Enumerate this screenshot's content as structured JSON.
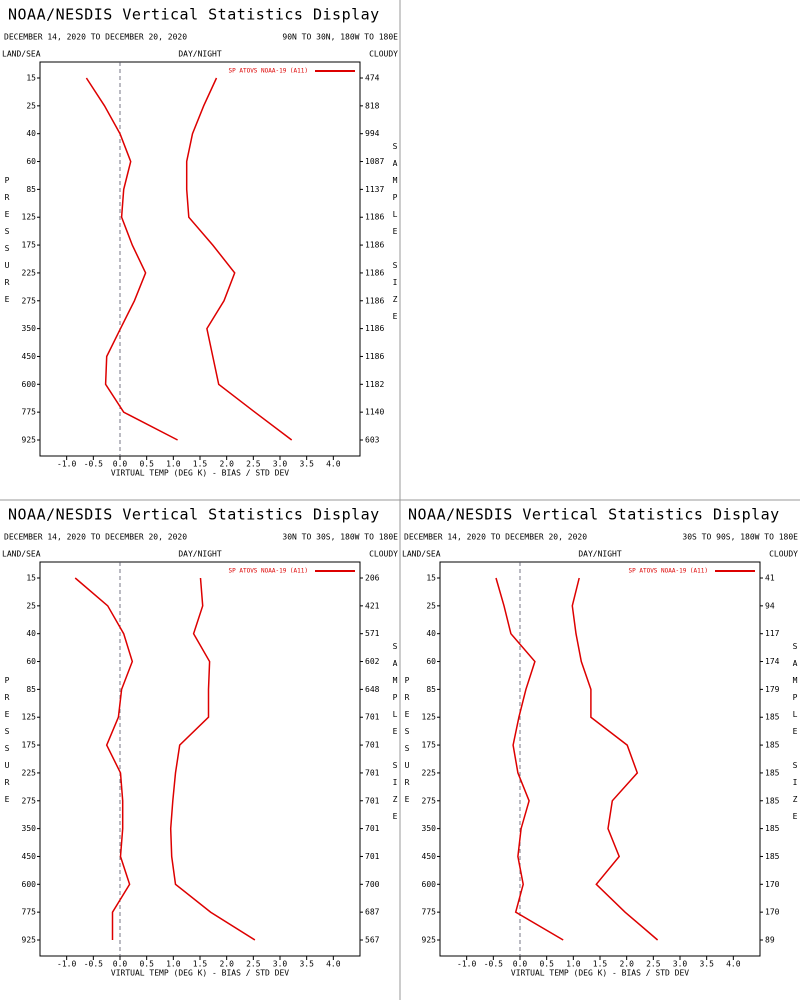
{
  "chart_data": [
    {
      "type": "line",
      "title": "NOAA/NESDIS Vertical Statistics Display",
      "subtitle": "DECEMBER 14, 2020 TO DECEMBER 20, 2020",
      "region": "90N TO 30N, 180W TO 180E",
      "land_sea": "LAND/SEA",
      "day_night": "DAY/NIGHT",
      "cloudy": "CLOUDY",
      "ylabel": "PRESSURE",
      "y2label": "SAMPLE SIZE",
      "xlabel": "VIRTUAL TEMP (DEG K) - BIAS / STD DEV",
      "legend": "SP ATOVS NOAA-19 (A11)",
      "categories": [
        15,
        25,
        40,
        60,
        85,
        125,
        175,
        225,
        275,
        350,
        450,
        600,
        775,
        925
      ],
      "sample_size": [
        474,
        818,
        994,
        1087,
        1137,
        1186,
        1186,
        1186,
        1186,
        1186,
        1186,
        1182,
        1140,
        603
      ],
      "xlim": [
        -1.5,
        4.5
      ],
      "xticks": [
        {
          "value": -1,
          "label": "-1.0"
        },
        {
          "value": -0.5,
          "label": "-0.5"
        },
        {
          "value": 0,
          "label": "0.0"
        },
        0.5,
        {
          "value": 1,
          "label": "1.0"
        },
        1.5,
        {
          "value": 2,
          "label": "2.0"
        },
        2.5,
        {
          "value": 3,
          "label": "3.0"
        },
        3.5,
        {
          "value": 4,
          "label": "4.0"
        }
      ],
      "series": [
        {
          "color": "#dd0000",
          "values": [
            -0.63,
            -0.29,
            0,
            0.2,
            0.07,
            0.03,
            0.23,
            0.48,
            0.27,
            0.01,
            -0.25,
            -0.27,
            0.07,
            1.08
          ]
        },
        {
          "color": "#dd0000",
          "values": [
            1.81,
            1.57,
            1.36,
            1.25,
            1.25,
            1.29,
            1.74,
            2.15,
            1.95,
            1.63,
            1.74,
            1.85,
            2.53,
            3.22
          ]
        }
      ]
    },
    {
      "type": "line",
      "title": "NOAA/NESDIS Vertical Statistics Display",
      "subtitle": "DECEMBER 14, 2020 TO DECEMBER 20, 2020",
      "region": "30N TO 30S, 180W TO 180E",
      "land_sea": "LAND/SEA",
      "day_night": "DAY/NIGHT",
      "cloudy": "CLOUDY",
      "ylabel": "PRESSURE",
      "y2label": "SAMPLE SIZE",
      "xlabel": "VIRTUAL TEMP (DEG K) - BIAS / STD DEV",
      "legend": "SP ATOVS NOAA-19 (A11)",
      "categories": [
        15,
        25,
        40,
        60,
        85,
        125,
        175,
        225,
        275,
        350,
        450,
        600,
        775,
        925
      ],
      "sample_size": [
        206,
        421,
        571,
        602,
        648,
        701,
        701,
        701,
        701,
        701,
        701,
        700,
        687,
        567
      ],
      "xlim": [
        -1.5,
        4.5
      ],
      "xticks": [
        {
          "value": -1,
          "label": "-1.0"
        },
        {
          "value": -0.5,
          "label": "-0.5"
        },
        {
          "value": 0,
          "label": "0.0"
        },
        0.5,
        {
          "value": 1,
          "label": "1.0"
        },
        1.5,
        {
          "value": 2,
          "label": "2.0"
        },
        2.5,
        {
          "value": 3,
          "label": "3.0"
        },
        3.5,
        {
          "value": 4,
          "label": "4.0"
        }
      ],
      "series": [
        {
          "color": "#dd0000",
          "values": [
            -0.84,
            -0.23,
            0.07,
            0.23,
            0.03,
            -0.03,
            -0.25,
            0.01,
            0.05,
            0.05,
            0.01,
            0.18,
            -0.14,
            -0.14
          ]
        },
        {
          "color": "#dd0000",
          "values": [
            1.51,
            1.55,
            1.38,
            1.68,
            1.66,
            1.66,
            1.12,
            1.04,
            0.99,
            0.95,
            0.97,
            1.04,
            1.7,
            2.53
          ]
        }
      ]
    },
    {
      "type": "line",
      "title": "NOAA/NESDIS Vertical Statistics Display",
      "subtitle": "DECEMBER 14, 2020 TO DECEMBER 20, 2020",
      "region": "30S TO 90S, 180W TO 180E",
      "land_sea": "LAND/SEA",
      "day_night": "DAY/NIGHT",
      "cloudy": "CLOUDY",
      "ylabel": "PRESSURE",
      "y2label": "SAMPLE SIZE",
      "xlabel": "VIRTUAL TEMP (DEG K) - BIAS / STD DEV",
      "legend": "SP ATOVS NOAA-19 (A11)",
      "categories": [
        15,
        25,
        40,
        60,
        85,
        125,
        175,
        225,
        275,
        350,
        450,
        600,
        775,
        925
      ],
      "sample_size": [
        41,
        94,
        117,
        174,
        179,
        185,
        185,
        185,
        185,
        185,
        185,
        170,
        170,
        89
      ],
      "xlim": [
        -1.5,
        4.5
      ],
      "xticks": [
        {
          "value": -1,
          "label": "-1.0"
        },
        {
          "value": -0.5,
          "label": "-0.5"
        },
        {
          "value": 0,
          "label": "0.0"
        },
        0.5,
        {
          "value": 1,
          "label": "1.0"
        },
        1.5,
        {
          "value": 2,
          "label": "2.0"
        },
        2.5,
        {
          "value": 3,
          "label": "3.0"
        },
        3.5,
        {
          "value": 4,
          "label": "4.0"
        }
      ],
      "series": [
        {
          "color": "#dd0000",
          "values": [
            -0.45,
            -0.3,
            -0.17,
            0.28,
            0.11,
            -0.02,
            -0.13,
            -0.04,
            0.17,
            0.02,
            -0.04,
            0.06,
            -0.08,
            0.81
          ]
        },
        {
          "color": "#dd0000",
          "values": [
            1.11,
            0.98,
            1.05,
            1.15,
            1.33,
            1.33,
            2.01,
            2.2,
            1.73,
            1.65,
            1.86,
            1.43,
            1.97,
            2.58
          ]
        }
      ]
    }
  ]
}
